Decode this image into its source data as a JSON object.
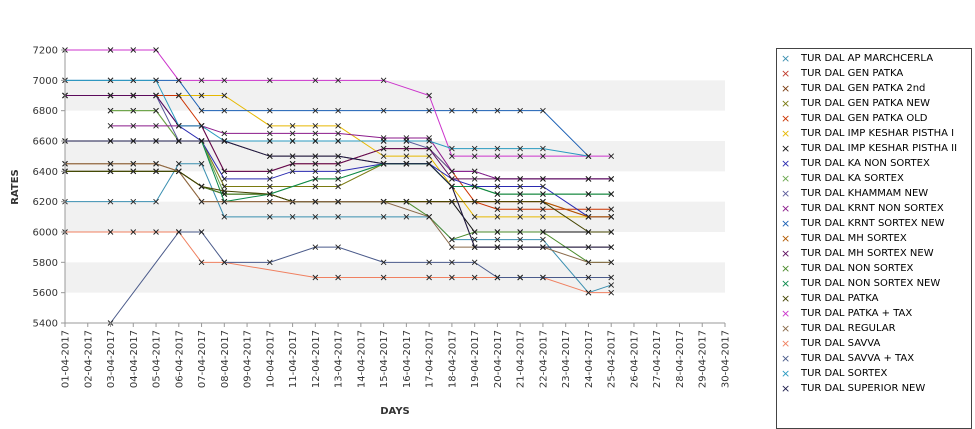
{
  "chart_data": {
    "type": "line",
    "title": "",
    "xlabel": "DAYS",
    "ylabel": "RATES",
    "ylim": [
      5400,
      7200
    ],
    "yticks": [
      5400,
      5600,
      5800,
      6000,
      6200,
      6400,
      6600,
      6800,
      7000,
      7200
    ],
    "grid": "alternating horizontal bands",
    "legend_position": "right",
    "categories": [
      "01-04-2017",
      "02-04-2017",
      "03-04-2017",
      "04-04-2017",
      "05-04-2017",
      "06-04-2017",
      "07-04-2017",
      "08-04-2017",
      "09-04-2017",
      "10-04-2017",
      "11-04-2017",
      "12-04-2017",
      "13-04-2017",
      "14-04-2017",
      "15-04-2017",
      "16-04-2017",
      "17-04-2017",
      "18-04-2017",
      "19-04-2017",
      "20-04-2017",
      "21-04-2017",
      "22-04-2017",
      "23-04-2017",
      "24-04-2017",
      "25-04-2017",
      "26-04-2017",
      "27-04-2017",
      "28-04-2017",
      "29-04-2017",
      "30-04-2017"
    ],
    "series": [
      {
        "name": "TUR DAL AP MARCHCERLA",
        "color": "#3a8fb0",
        "values": [
          6200,
          null,
          6200,
          6200,
          6200,
          6450,
          6450,
          6100,
          null,
          6100,
          6100,
          6100,
          6100,
          null,
          6100,
          6100,
          6100,
          5950,
          5950,
          5950,
          5950,
          5950,
          null,
          5600,
          5650,
          null,
          null,
          null,
          null,
          null
        ]
      },
      {
        "name": "TUR DAL GEN PATKA",
        "color": "#c0392b",
        "values": [
          6400,
          null,
          6400,
          6400,
          6400,
          6400,
          6300,
          6250,
          null,
          6250,
          6200,
          6200,
          6200,
          null,
          6200,
          6200,
          6200,
          6200,
          6200,
          6200,
          6200,
          6200,
          null,
          6100,
          6100,
          null,
          null,
          null,
          null,
          null
        ]
      },
      {
        "name": "TUR DAL GEN PATKA 2nd",
        "color": "#7a3b10",
        "values": [
          6600,
          null,
          6600,
          6600,
          6600,
          6600,
          6600,
          6600,
          null,
          6500,
          6500,
          6500,
          6500,
          null,
          6450,
          6450,
          6450,
          6300,
          5900,
          5900,
          5900,
          5900,
          null,
          5900,
          5900,
          null,
          null,
          null,
          null,
          null
        ]
      },
      {
        "name": "TUR DAL GEN PATKA NEW",
        "color": "#7a7a10",
        "values": [
          null,
          null,
          6800,
          6800,
          6800,
          6600,
          6600,
          6300,
          null,
          6300,
          null,
          6300,
          6300,
          null,
          6450,
          6450,
          6450,
          6300,
          6300,
          6250,
          6250,
          6250,
          null,
          6250,
          6250,
          null,
          null,
          null,
          null,
          null
        ]
      },
      {
        "name": "TUR DAL GEN PATKA OLD",
        "color": "#cc3300",
        "values": [
          6900,
          null,
          6900,
          6900,
          6900,
          6900,
          6700,
          6400,
          null,
          6400,
          6450,
          6450,
          6450,
          null,
          6550,
          6550,
          6550,
          6400,
          6200,
          6150,
          6150,
          6150,
          null,
          6150,
          6150,
          null,
          null,
          null,
          null,
          null
        ]
      },
      {
        "name": "TUR DAL IMP KESHAR PISTHA I",
        "color": "#e6b800",
        "values": [
          null,
          null,
          null,
          null,
          null,
          6900,
          6900,
          6900,
          null,
          6700,
          6700,
          6700,
          6700,
          null,
          6500,
          6500,
          6500,
          6300,
          6100,
          6100,
          6100,
          6100,
          null,
          6100,
          6100,
          null,
          null,
          null,
          null,
          null
        ]
      },
      {
        "name": "TUR DAL IMP KESHAR PISTHA II",
        "color": "#111111",
        "values": [
          6400,
          null,
          6400,
          6400,
          6400,
          6400,
          6300,
          6250,
          null,
          6250,
          6200,
          6200,
          6200,
          null,
          6200,
          6200,
          6200,
          6200,
          6000,
          6000,
          6000,
          6000,
          null,
          6000,
          6000,
          null,
          null,
          null,
          null,
          null
        ]
      },
      {
        "name": "TUR DAL KA NON SORTEX",
        "color": "#2a2ab0",
        "values": [
          6900,
          null,
          6900,
          6900,
          6900,
          6700,
          6600,
          6350,
          null,
          6350,
          6400,
          6400,
          6400,
          null,
          6450,
          6450,
          6450,
          6350,
          6300,
          6300,
          6300,
          6300,
          null,
          6100,
          6100,
          null,
          null,
          null,
          null,
          null
        ]
      },
      {
        "name": "TUR DAL KA SORTEX",
        "color": "#6aa84f",
        "values": [
          null,
          null,
          6800,
          6800,
          6800,
          6600,
          6600,
          6250,
          null,
          6250,
          null,
          6350,
          6350,
          null,
          6450,
          6450,
          6450,
          6300,
          6300,
          6250,
          6250,
          6250,
          null,
          6250,
          6250,
          null,
          null,
          null,
          null,
          null
        ]
      },
      {
        "name": "TUR DAL KHAMMAM NEW",
        "color": "#5a5a9a",
        "values": [
          6900,
          null,
          6900,
          6900,
          6900,
          6600,
          6600,
          6600,
          null,
          6600,
          6600,
          6600,
          6600,
          null,
          6600,
          6600,
          6550,
          6400,
          6400,
          6350,
          6350,
          6350,
          null,
          6350,
          6350,
          null,
          null,
          null,
          null,
          null
        ]
      },
      {
        "name": "TUR DAL KRNT NON SORTEX",
        "color": "#8b1a8b",
        "values": [
          null,
          null,
          6700,
          6700,
          6700,
          6700,
          6700,
          6650,
          null,
          6650,
          6650,
          6650,
          6650,
          null,
          6620,
          6620,
          6620,
          6400,
          6400,
          6350,
          6350,
          6350,
          null,
          6350,
          6350,
          null,
          null,
          null,
          null,
          null
        ]
      },
      {
        "name": "TUR DAL KRNT SORTEX NEW",
        "color": "#1a5fb4",
        "values": [
          7000,
          null,
          7000,
          7000,
          7000,
          7000,
          6800,
          6800,
          null,
          6800,
          null,
          6800,
          6800,
          null,
          6800,
          null,
          6800,
          6800,
          6800,
          6800,
          6800,
          6800,
          null,
          6500,
          null,
          null,
          null,
          null,
          null,
          null
        ]
      },
      {
        "name": "TUR DAL MH SORTEX",
        "color": "#b35900",
        "values": [
          6450,
          null,
          6450,
          6450,
          6450,
          6400,
          6200,
          6200,
          null,
          6200,
          6200,
          6200,
          6200,
          null,
          6200,
          6200,
          6200,
          6200,
          6200,
          6200,
          6200,
          6200,
          null,
          6100,
          6100,
          null,
          null,
          null,
          null,
          null
        ]
      },
      {
        "name": "TUR DAL MH SORTEX NEW",
        "color": "#5b0a5b",
        "values": [
          6900,
          null,
          6900,
          6900,
          6900,
          6700,
          6700,
          6400,
          null,
          6400,
          6450,
          6450,
          6450,
          null,
          6550,
          6550,
          6550,
          6350,
          6350,
          6350,
          6350,
          6350,
          null,
          6350,
          6350,
          null,
          null,
          null,
          null,
          null
        ]
      },
      {
        "name": "TUR DAL NON SORTEX",
        "color": "#4b8b2b",
        "values": [
          6400,
          null,
          6400,
          6400,
          6400,
          6400,
          6300,
          6250,
          null,
          6250,
          6200,
          6200,
          6200,
          null,
          6200,
          6200,
          6100,
          5950,
          6000,
          6000,
          6000,
          6000,
          null,
          5800,
          5800,
          null,
          null,
          null,
          null,
          null
        ]
      },
      {
        "name": "TUR DAL NON SORTEX NEW",
        "color": "#0b8a4b",
        "values": [
          null,
          null,
          null,
          null,
          null,
          6600,
          6600,
          6200,
          null,
          6250,
          null,
          6350,
          6350,
          null,
          6450,
          6450,
          6450,
          6300,
          6300,
          6250,
          6250,
          6250,
          null,
          6250,
          6250,
          null,
          null,
          null,
          null,
          null
        ]
      },
      {
        "name": "TUR DAL PATKA",
        "color": "#444400",
        "values": [
          6400,
          null,
          6400,
          6400,
          6400,
          6400,
          6300,
          6270,
          null,
          6250,
          6200,
          6200,
          6200,
          null,
          6200,
          6200,
          6200,
          6200,
          6200,
          6200,
          6200,
          6200,
          null,
          6000,
          6000,
          null,
          null,
          null,
          null,
          null
        ]
      },
      {
        "name": "TUR DAL PATKA + TAX",
        "color": "#cc33cc",
        "values": [
          7200,
          null,
          7200,
          7200,
          7200,
          7000,
          7000,
          7000,
          null,
          7000,
          null,
          7000,
          7000,
          null,
          7000,
          null,
          6900,
          6500,
          6500,
          6500,
          6500,
          6500,
          null,
          6500,
          6500,
          null,
          null,
          null,
          null,
          null
        ]
      },
      {
        "name": "TUR DAL REGULAR",
        "color": "#8a6a4a",
        "values": [
          6450,
          null,
          6450,
          6450,
          6450,
          6400,
          6200,
          6200,
          null,
          6200,
          null,
          6200,
          6200,
          null,
          6200,
          null,
          6100,
          5900,
          5900,
          5900,
          5900,
          5900,
          null,
          5800,
          5800,
          null,
          null,
          null,
          null,
          null
        ]
      },
      {
        "name": "TUR DAL SAVVA",
        "color": "#f08060",
        "values": [
          6000,
          null,
          6000,
          6000,
          6000,
          6000,
          5800,
          5800,
          null,
          null,
          null,
          5700,
          5700,
          null,
          5700,
          null,
          5700,
          5700,
          5700,
          5700,
          5700,
          5700,
          null,
          5600,
          5600,
          null,
          null,
          null,
          null,
          null
        ]
      },
      {
        "name": "TUR DAL SAVVA + TAX",
        "color": "#4a5a8a",
        "values": [
          null,
          null,
          5400,
          null,
          null,
          6000,
          6000,
          5800,
          null,
          5800,
          null,
          5900,
          5900,
          null,
          5800,
          null,
          5800,
          5800,
          5800,
          5700,
          5700,
          5700,
          null,
          5700,
          5700,
          null,
          null,
          null,
          null,
          null
        ]
      },
      {
        "name": "TUR DAL SORTEX",
        "color": "#2a9ac0",
        "values": [
          7000,
          null,
          7000,
          7000,
          7000,
          6700,
          6700,
          6600,
          null,
          6600,
          6600,
          6600,
          6600,
          null,
          6600,
          6600,
          6600,
          6550,
          6550,
          6550,
          6550,
          6550,
          null,
          6500,
          null,
          null,
          null,
          null,
          null,
          null
        ]
      },
      {
        "name": "TUR DAL SUPERIOR NEW",
        "color": "#1a1a4a",
        "values": [
          6600,
          null,
          6600,
          6600,
          6600,
          6600,
          6600,
          6600,
          null,
          6500,
          6500,
          6500,
          6500,
          null,
          6450,
          6450,
          6450,
          6300,
          5900,
          5900,
          5900,
          5900,
          null,
          5900,
          5900,
          null,
          null,
          null,
          null,
          null
        ]
      }
    ]
  }
}
